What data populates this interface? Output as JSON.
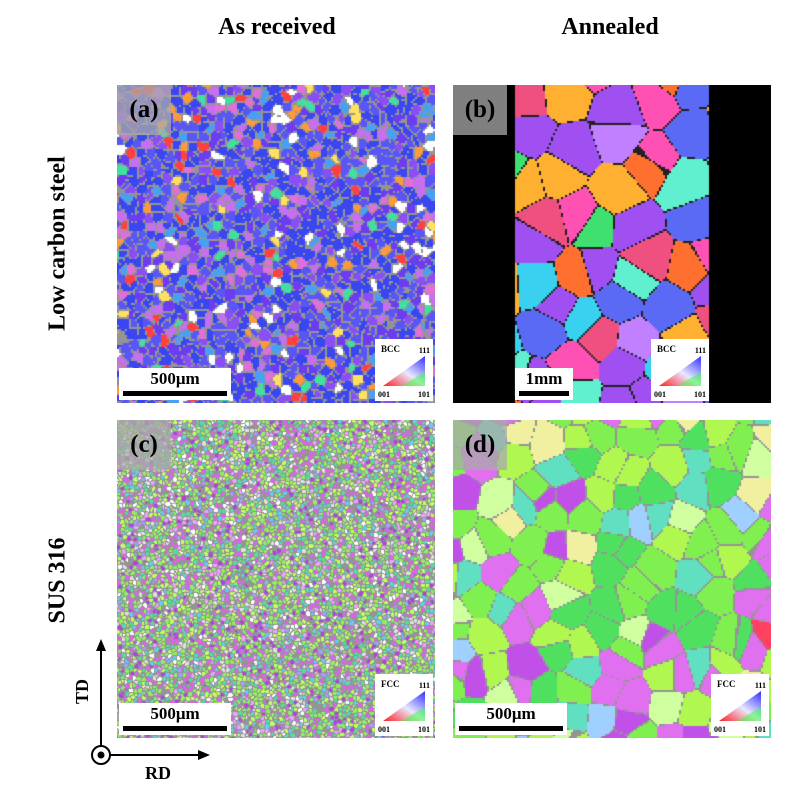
{
  "columns": {
    "as_received": "As received",
    "annealed": "Annealed"
  },
  "rows": {
    "low_carbon": "Low carbon steel",
    "sus": "SUS 316"
  },
  "panels": [
    {
      "label": "(a)",
      "scale": "500μm",
      "structure": "BCC",
      "dominant": "blue-violet"
    },
    {
      "label": "(b)",
      "scale": "1mm",
      "structure": "BCC",
      "dominant": "multicolor-coarse"
    },
    {
      "label": "(c)",
      "scale": "500μm",
      "structure": "FCC",
      "dominant": "green-magenta-fine"
    },
    {
      "label": "(d)",
      "scale": "500μm",
      "structure": "FCC",
      "dominant": "green-magenta-coarse"
    }
  ],
  "legend": {
    "corner_111": "111",
    "corner_001": "001",
    "corner_101": "101"
  },
  "axes": {
    "td": "TD",
    "rd": "RD"
  }
}
